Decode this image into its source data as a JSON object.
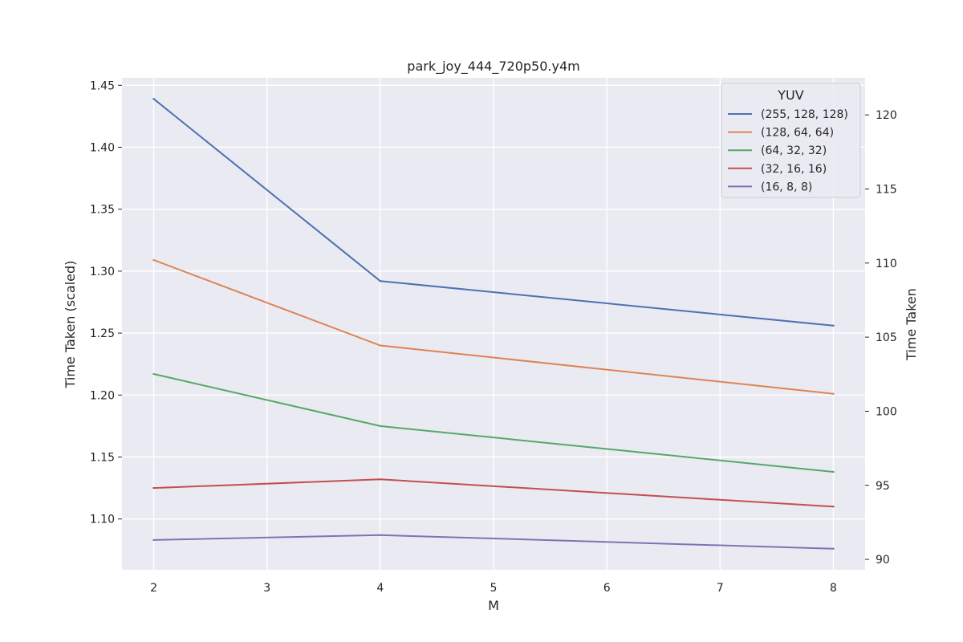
{
  "chart_data": {
    "type": "line",
    "title": "park_joy_444_720p50.y4m",
    "xlabel": "M",
    "ylabel": "Time Taken (scaled)",
    "ylabel_right": "Time Taken",
    "x": [
      2,
      4,
      8
    ],
    "xticks": [
      2,
      3,
      4,
      5,
      6,
      7,
      8
    ],
    "xlim": [
      1.72,
      8.28
    ],
    "ylim": [
      1.059,
      1.456
    ],
    "yticks": [
      1.1,
      1.15,
      1.2,
      1.25,
      1.3,
      1.35,
      1.4,
      1.45
    ],
    "ytick_labels": [
      "1.10",
      "1.15",
      "1.20",
      "1.25",
      "1.30",
      "1.35",
      "1.40",
      "1.45"
    ],
    "ylim_right": [
      89.3,
      122.5
    ],
    "yticks_right": [
      90,
      95,
      100,
      105,
      110,
      115,
      120
    ],
    "ytick_labels_right": [
      "90",
      "95",
      "100",
      "105",
      "110",
      "115",
      "120"
    ],
    "grid": true,
    "legend_title": "YUV",
    "legend_position": "top-right",
    "series": [
      {
        "name": "(255, 128, 128)",
        "color": "#4c72b0",
        "values": [
          1.439,
          1.292,
          1.256
        ]
      },
      {
        "name": "(128, 64, 64)",
        "color": "#dd8452",
        "values": [
          1.309,
          1.24,
          1.201
        ]
      },
      {
        "name": "(64, 32, 32)",
        "color": "#55a868",
        "values": [
          1.217,
          1.175,
          1.138
        ]
      },
      {
        "name": "(32, 16, 16)",
        "color": "#c44e52",
        "values": [
          1.125,
          1.132,
          1.11
        ]
      },
      {
        "name": "(16, 8, 8)",
        "color": "#8172b3",
        "values": [
          1.083,
          1.087,
          1.076
        ]
      }
    ]
  }
}
